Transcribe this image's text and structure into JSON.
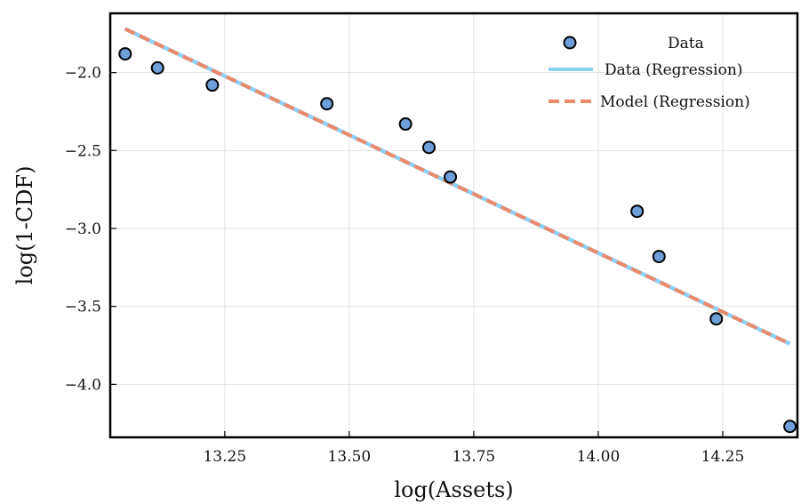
{
  "chart_data": {
    "type": "scatter",
    "title": "",
    "xlabel": "log(Assets)",
    "ylabel": "log(1-CDF)",
    "xlim": [
      13.02,
      14.4
    ],
    "ylim": [
      -4.34,
      -1.62
    ],
    "xticks": [
      13.25,
      13.5,
      13.75,
      14.0,
      14.25
    ],
    "xtick_labels": [
      "13.25",
      "13.50",
      "13.75",
      "14.00",
      "14.25"
    ],
    "yticks": [
      -2.0,
      -2.5,
      -3.0,
      -3.5,
      -4.0
    ],
    "ytick_labels": [
      "−2.0",
      "−2.5",
      "−3.0",
      "−3.5",
      "−4.0"
    ],
    "grid": true,
    "legend_position": "top-right",
    "series": [
      {
        "name": "Data",
        "kind": "scatter",
        "color": "#6e9fd8",
        "x": [
          13.05,
          13.115,
          13.225,
          13.455,
          13.613,
          13.66,
          13.703,
          14.078,
          14.122,
          14.237,
          14.385
        ],
        "y": [
          -1.88,
          -1.97,
          -2.08,
          -2.2,
          -2.33,
          -2.48,
          -2.67,
          -2.89,
          -3.18,
          -3.58,
          -4.27
        ]
      },
      {
        "name": "Data (Regression)",
        "kind": "line",
        "color": "#8fd0f5",
        "x": [
          13.05,
          14.385
        ],
        "y": [
          -1.72,
          -3.74
        ]
      },
      {
        "name": "Model (Regression)",
        "kind": "dashed-line",
        "color": "#ea8a6c",
        "x": [
          13.05,
          14.385
        ],
        "y": [
          -1.72,
          -3.74
        ]
      }
    ]
  }
}
